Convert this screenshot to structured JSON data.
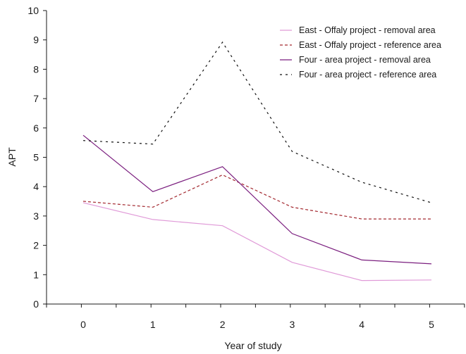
{
  "chart_data": {
    "type": "line",
    "title": "",
    "xlabel": "Year of study",
    "ylabel": "APT",
    "x": [
      0,
      1,
      2,
      3,
      4,
      5
    ],
    "xlim": [
      -0.5,
      5.6
    ],
    "ylim": [
      0,
      10
    ],
    "yticks": [
      0,
      1,
      2,
      3,
      4,
      5,
      6,
      7,
      8,
      9,
      10
    ],
    "grid": false,
    "legend_position": "top-right",
    "series": [
      {
        "name": "East - Offaly project - removal area",
        "values": [
          3.45,
          2.88,
          2.67,
          1.42,
          0.8,
          0.82
        ],
        "color": "#e09ad8",
        "dash": "solid"
      },
      {
        "name": "East - Offaly project - reference area",
        "values": [
          3.5,
          3.3,
          4.4,
          3.3,
          2.9,
          2.9
        ],
        "color": "#a3282f",
        "dash": "dashed"
      },
      {
        "name": "Four - area project - removal area",
        "values": [
          5.75,
          3.83,
          4.68,
          2.4,
          1.5,
          1.37
        ],
        "color": "#7b1f7f",
        "dash": "solid"
      },
      {
        "name": "Four - area project - reference area",
        "values": [
          5.57,
          5.45,
          8.92,
          5.2,
          4.15,
          3.45
        ],
        "color": "#111111",
        "dash": "dotted"
      }
    ]
  }
}
